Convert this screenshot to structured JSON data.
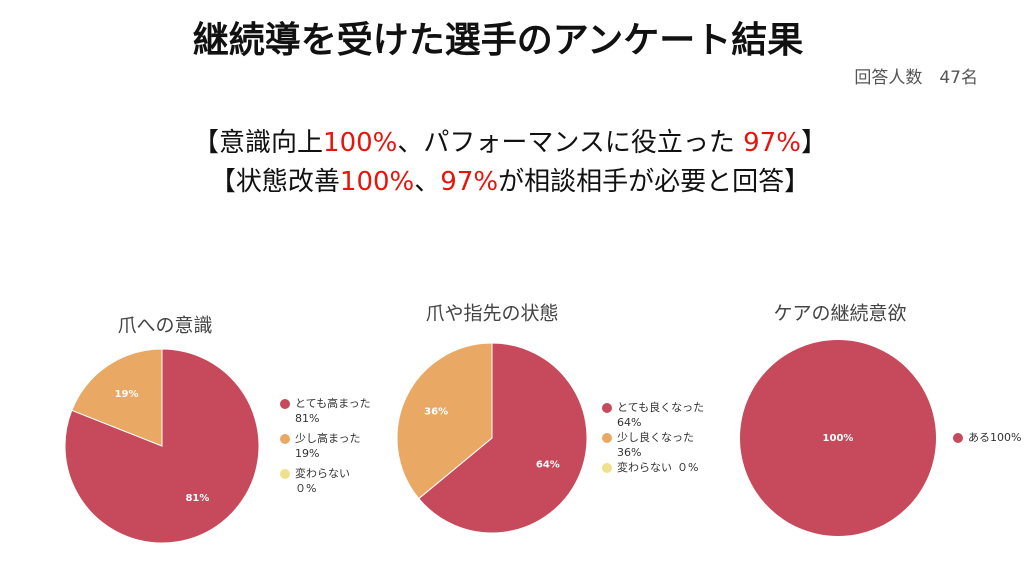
{
  "header": {
    "title": "継続導を受けた選手のアンケート結果",
    "respondents": "回答人数　47名"
  },
  "headline": [
    [
      {
        "text": "【意識向上",
        "color": "#111111"
      },
      {
        "text": "100%",
        "color": "#e8140c"
      },
      {
        "text": "、パフォーマンスに役立った ",
        "color": "#111111"
      },
      {
        "text": "97%",
        "color": "#e8140c"
      },
      {
        "text": "】",
        "color": "#111111"
      }
    ],
    [
      {
        "text": "【状態改善",
        "color": "#111111"
      },
      {
        "text": "100%",
        "color": "#e8140c"
      },
      {
        "text": "、",
        "color": "#111111"
      },
      {
        "text": "97%",
        "color": "#e8140c"
      },
      {
        "text": "が相談相手が必要と回答】",
        "color": "#111111"
      }
    ]
  ],
  "chart_data": [
    {
      "type": "pie",
      "title": "爪への意識",
      "categories": [
        "とても高まった",
        "少し高まった",
        "変わらない"
      ],
      "values": [
        81,
        19,
        0
      ],
      "value_labels": [
        "81%",
        "19%",
        "０%"
      ],
      "colors": [
        "#c64a5b",
        "#e9a964",
        "#efe08c"
      ]
    },
    {
      "type": "pie",
      "title": "爪や指先の状態",
      "categories": [
        "とても良くなった",
        "少し良くなった",
        "変わらない"
      ],
      "values": [
        64,
        36,
        0
      ],
      "value_labels": [
        "64%",
        "36%",
        "０%"
      ],
      "colors": [
        "#c64a5b",
        "#e9a964",
        "#efe08c"
      ]
    },
    {
      "type": "pie",
      "title": "ケアの継続意欲",
      "categories": [
        "ある"
      ],
      "values": [
        100
      ],
      "value_labels": [
        "100%"
      ],
      "colors": [
        "#c64a5b"
      ]
    }
  ]
}
